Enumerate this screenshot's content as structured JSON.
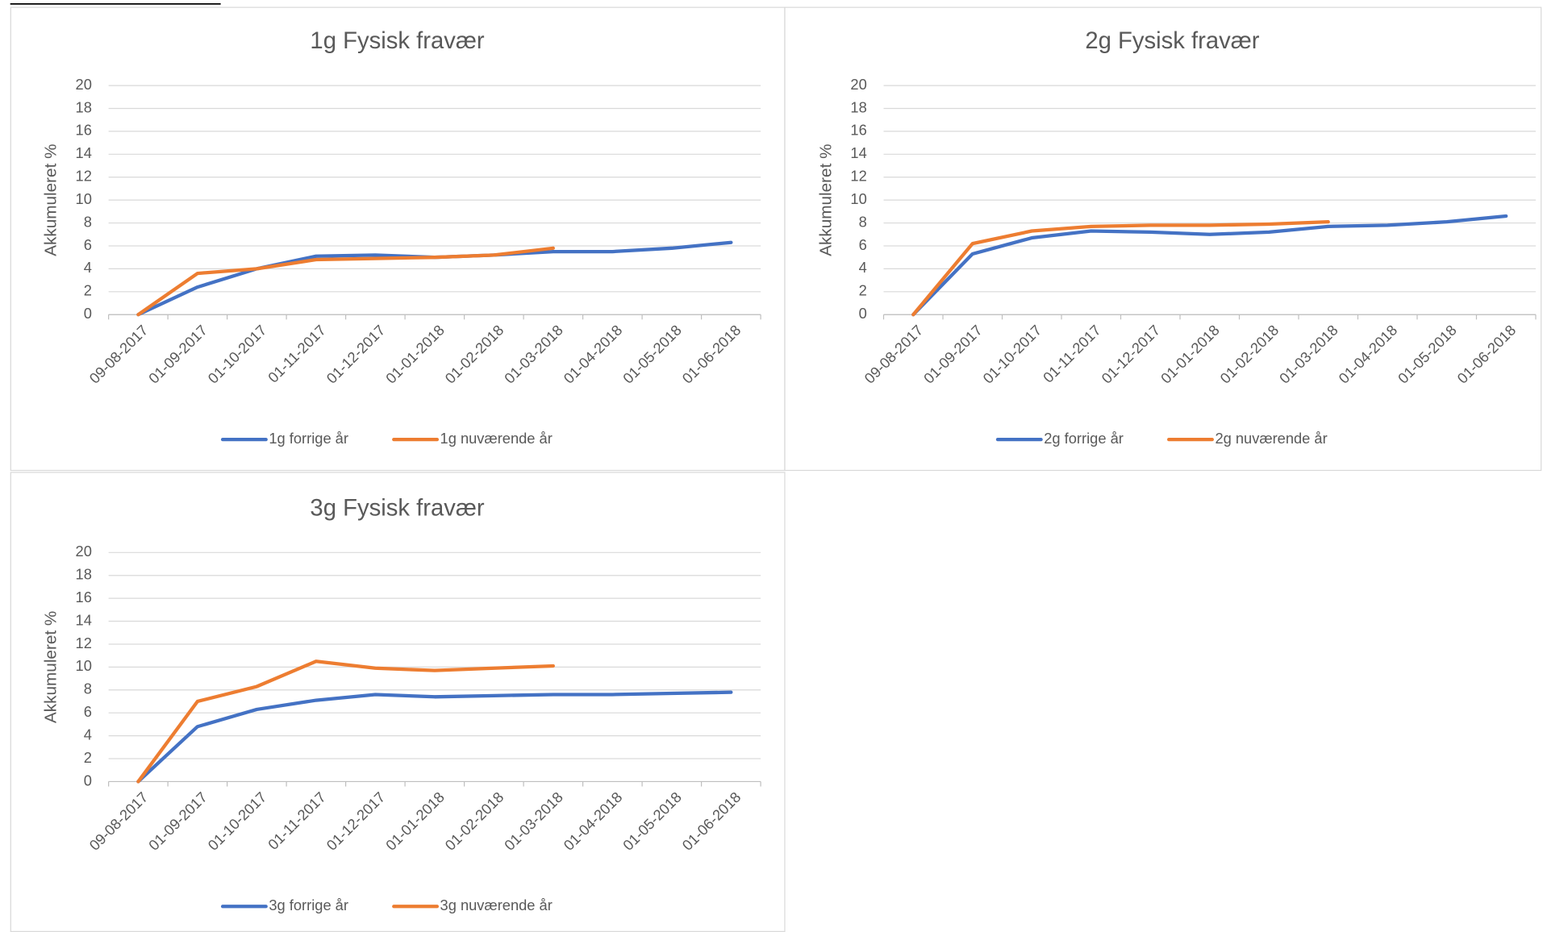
{
  "chart_data": [
    {
      "type": "line",
      "title": "1g Fysisk fravær",
      "y_label": "Akkumuleret %",
      "categories": [
        "09-08-2017",
        "01-09-2017",
        "01-10-2017",
        "01-11-2017",
        "01-12-2017",
        "01-01-2018",
        "01-02-2018",
        "01-03-2018",
        "01-04-2018",
        "01-05-2018",
        "01-06-2018"
      ],
      "series": [
        {
          "name": "1g forrige år",
          "color": "#4472c4",
          "values": [
            0,
            2.4,
            4.0,
            5.1,
            5.2,
            5.0,
            5.2,
            5.5,
            5.5,
            5.8,
            6.3
          ]
        },
        {
          "name": "1g nuværende år",
          "color": "#ed7d31",
          "values": [
            0,
            3.6,
            4.0,
            4.8,
            4.9,
            5.0,
            5.2,
            5.8,
            null,
            null,
            null
          ]
        }
      ],
      "ylim": [
        0,
        20
      ],
      "yticks": [
        0,
        2,
        4,
        6,
        8,
        10,
        12,
        14,
        16,
        18,
        20
      ],
      "grid": true,
      "legend": "bottom"
    },
    {
      "type": "line",
      "title": "2g Fysisk fravær",
      "y_label": "Akkumuleret %",
      "categories": [
        "09-08-2017",
        "01-09-2017",
        "01-10-2017",
        "01-11-2017",
        "01-12-2017",
        "01-01-2018",
        "01-02-2018",
        "01-03-2018",
        "01-04-2018",
        "01-05-2018",
        "01-06-2018"
      ],
      "series": [
        {
          "name": "2g forrige år",
          "color": "#4472c4",
          "values": [
            0,
            5.3,
            6.7,
            7.3,
            7.2,
            7.0,
            7.2,
            7.7,
            7.8,
            8.1,
            8.6
          ]
        },
        {
          "name": "2g nuværende år",
          "color": "#ed7d31",
          "values": [
            0,
            6.2,
            7.3,
            7.7,
            7.8,
            7.8,
            7.9,
            8.1,
            null,
            null,
            null
          ]
        }
      ],
      "ylim": [
        0,
        20
      ],
      "yticks": [
        0,
        2,
        4,
        6,
        8,
        10,
        12,
        14,
        16,
        18,
        20
      ],
      "grid": true,
      "legend": "bottom"
    },
    {
      "type": "line",
      "title": "3g Fysisk fravær",
      "y_label": "Akkumuleret %",
      "categories": [
        "09-08-2017",
        "01-09-2017",
        "01-10-2017",
        "01-11-2017",
        "01-12-2017",
        "01-01-2018",
        "01-02-2018",
        "01-03-2018",
        "01-04-2018",
        "01-05-2018",
        "01-06-2018"
      ],
      "series": [
        {
          "name": "3g forrige år",
          "color": "#4472c4",
          "values": [
            0,
            4.8,
            6.3,
            7.1,
            7.6,
            7.4,
            7.5,
            7.6,
            7.6,
            7.7,
            7.8
          ]
        },
        {
          "name": "3g nuværende år",
          "color": "#ed7d31",
          "values": [
            0,
            7.0,
            8.3,
            10.5,
            9.9,
            9.7,
            9.9,
            10.1,
            null,
            null,
            null
          ]
        }
      ],
      "ylim": [
        0,
        20
      ],
      "yticks": [
        0,
        2,
        4,
        6,
        8,
        10,
        12,
        14,
        16,
        18,
        20
      ],
      "grid": true,
      "legend": "bottom"
    }
  ]
}
